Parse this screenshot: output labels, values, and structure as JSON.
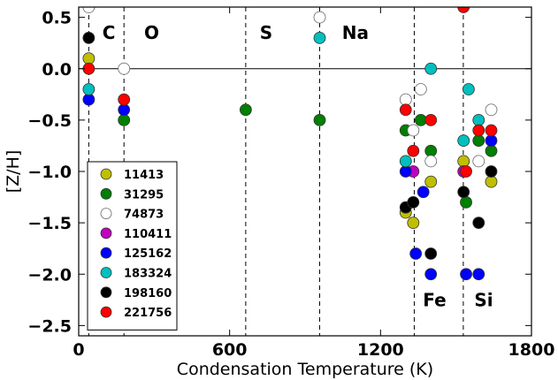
{
  "chart_data": {
    "type": "scatter",
    "xlabel": "Condensation Temperature (K)",
    "ylabel": "[Z/H]",
    "xlim": [
      0,
      1800
    ],
    "ylim": [
      -2.6,
      0.6
    ],
    "xticks": [
      0,
      600,
      1200,
      1800
    ],
    "yticks": [
      0.5,
      0.0,
      -0.5,
      -1.0,
      -1.5,
      -2.0,
      -2.5
    ],
    "ytick_labels": [
      "0.5",
      "0.0",
      "−0.5",
      "−1.0",
      "−1.5",
      "−2.0",
      "−2.5"
    ],
    "reference_line_y": 0.0,
    "element_lines": [
      {
        "name": "C",
        "tc": 40
      },
      {
        "name": "O",
        "tc": 180
      },
      {
        "name": "S",
        "tc": 664
      },
      {
        "name": "Na",
        "tc": 958
      },
      {
        "name": "Fe",
        "tc": 1334
      },
      {
        "name": "Si",
        "tc": 1529
      }
    ],
    "element_labels": [
      {
        "text": "C",
        "x": 120,
        "y": 0.35
      },
      {
        "text": "O",
        "x": 290,
        "y": 0.35
      },
      {
        "text": "S",
        "x": 745,
        "y": 0.35
      },
      {
        "text": "Na",
        "x": 1100,
        "y": 0.35
      },
      {
        "text": "Fe",
        "x": 1415,
        "y": -2.25
      },
      {
        "text": "Si",
        "x": 1610,
        "y": -2.25
      }
    ],
    "legend_position": "lower-left",
    "series": [
      {
        "name": "11413",
        "color": "#bfbf00",
        "points": [
          [
            40,
            0.1
          ],
          [
            1300,
            -1.4
          ],
          [
            1330,
            -1.5
          ],
          [
            1400,
            -1.1
          ],
          [
            1530,
            -0.9
          ],
          [
            1640,
            -1.1
          ]
        ]
      },
      {
        "name": "31295",
        "color": "#007f00",
        "points": [
          [
            180,
            -0.5
          ],
          [
            664,
            -0.4
          ],
          [
            958,
            -0.5
          ],
          [
            1300,
            -0.6
          ],
          [
            1360,
            -0.5
          ],
          [
            1400,
            -0.8
          ],
          [
            1540,
            -1.3
          ],
          [
            1590,
            -0.7
          ],
          [
            1640,
            -0.8
          ]
        ]
      },
      {
        "name": "74873",
        "color": "#ffffff",
        "points": [
          [
            40,
            0.6
          ],
          [
            180,
            0.0
          ],
          [
            958,
            0.5
          ],
          [
            1300,
            -0.3
          ],
          [
            1330,
            -0.6
          ],
          [
            1360,
            -0.2
          ],
          [
            1400,
            -0.9
          ],
          [
            1590,
            -0.9
          ],
          [
            1640,
            -0.4
          ]
        ]
      },
      {
        "name": "110411",
        "color": "#bf00bf",
        "points": [
          [
            1330,
            -1.0
          ],
          [
            1530,
            -1.0
          ]
        ]
      },
      {
        "name": "125162",
        "color": "#0000ff",
        "points": [
          [
            40,
            -0.3
          ],
          [
            180,
            -0.4
          ],
          [
            1300,
            -1.0
          ],
          [
            1340,
            -1.8
          ],
          [
            1370,
            -1.2
          ],
          [
            1400,
            -2.0
          ],
          [
            1540,
            -2.0
          ],
          [
            1590,
            -2.0
          ],
          [
            1640,
            -0.7
          ]
        ]
      },
      {
        "name": "183324",
        "color": "#00bfbf",
        "points": [
          [
            40,
            -0.2
          ],
          [
            958,
            0.3
          ],
          [
            1300,
            -0.9
          ],
          [
            1400,
            0.0
          ],
          [
            1530,
            -0.7
          ],
          [
            1550,
            -0.2
          ],
          [
            1590,
            -0.5
          ]
        ]
      },
      {
        "name": "198160",
        "color": "#000000",
        "points": [
          [
            40,
            0.3
          ],
          [
            1300,
            -1.35
          ],
          [
            1330,
            -1.3
          ],
          [
            1400,
            -1.8
          ],
          [
            1530,
            -1.2
          ],
          [
            1590,
            -1.5
          ],
          [
            1640,
            -1.0
          ]
        ]
      },
      {
        "name": "221756",
        "color": "#ff0000",
        "points": [
          [
            40,
            0.0
          ],
          [
            180,
            -0.3
          ],
          [
            1300,
            -0.4
          ],
          [
            1330,
            -0.8
          ],
          [
            1400,
            -0.5
          ],
          [
            1530,
            0.6
          ],
          [
            1540,
            -1.0
          ],
          [
            1590,
            -0.6
          ],
          [
            1640,
            -0.6
          ]
        ]
      }
    ]
  }
}
